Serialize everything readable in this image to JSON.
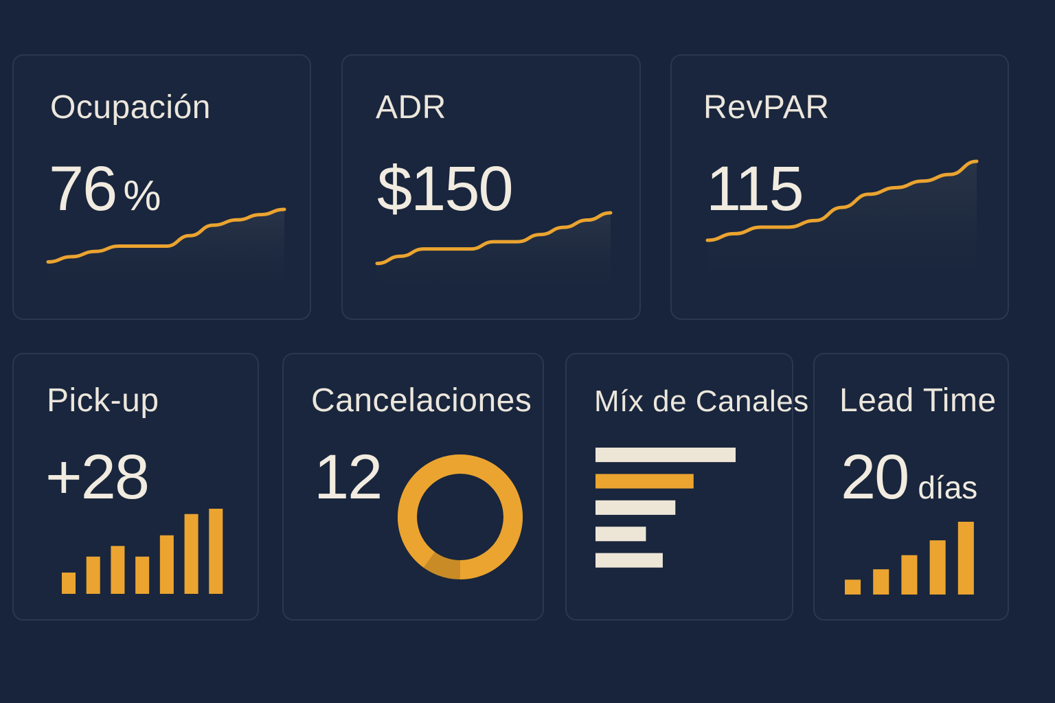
{
  "colors": {
    "background": "#17243b",
    "card": "#19263d",
    "border": "#2a3750",
    "accent": "#eba430",
    "text": "#ece6dc",
    "muted_bar": "#ede5d6"
  },
  "kpis": {
    "ocupacion": {
      "title": "Ocupación",
      "value": "76",
      "unit": "%",
      "trend": [
        2,
        3,
        4,
        5,
        5,
        5,
        7,
        9,
        10,
        11,
        12
      ]
    },
    "adr": {
      "title": "ADR",
      "value": "$150",
      "trend": [
        2,
        3,
        4,
        4,
        4,
        5,
        5,
        6,
        7,
        8,
        9
      ]
    },
    "revpar": {
      "title": "RevPAR",
      "value": "115",
      "trend": [
        2,
        3,
        4,
        4,
        5,
        7,
        9,
        10,
        11,
        12,
        14
      ]
    },
    "pickup": {
      "title": "Pick-up",
      "value": "+28",
      "bars": [
        2,
        3.5,
        4.5,
        3.5,
        5.5,
        7.5,
        8
      ]
    },
    "cancelaciones": {
      "title": "Cancelaciones",
      "value": "12",
      "donut_fill": 0.9
    },
    "mix_canales": {
      "title": "Míx de Canales",
      "bars": [
        {
          "value": 100,
          "color": "muted"
        },
        {
          "value": 70,
          "color": "accent"
        },
        {
          "value": 57,
          "color": "muted"
        },
        {
          "value": 36,
          "color": "muted"
        },
        {
          "value": 48,
          "color": "muted"
        }
      ]
    },
    "lead_time": {
      "title": "Lead Time",
      "value": "20",
      "unit": "días",
      "bars": [
        2,
        3.4,
        5.3,
        7.3,
        9.8
      ]
    }
  }
}
